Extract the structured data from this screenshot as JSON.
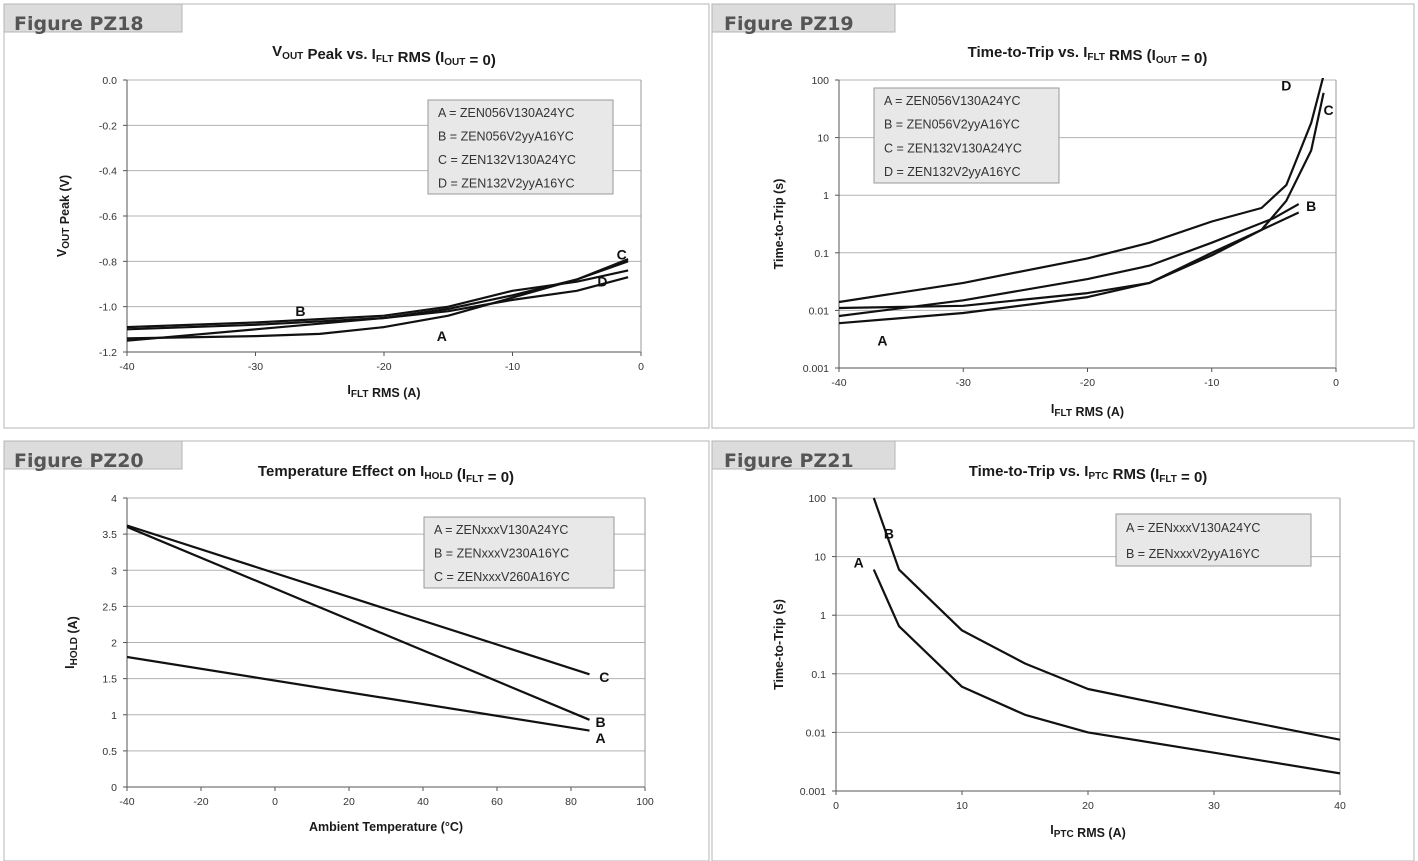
{
  "colors": {
    "frame": "#b5b5b5",
    "tab_bg": "#dcdcdc",
    "grid": "#b3b3b3",
    "line": "#111111",
    "legend_bg": "#e8e8e8"
  },
  "chart_data": [
    {
      "id": "pz18",
      "type": "line",
      "figure_label": "Figure PZ18",
      "title": {
        "a": "V",
        "a_sub": "OUT",
        "b": " Peak vs. I",
        "b_sub": "FLT",
        "c": " RMS (I",
        "c_sub": "OUT",
        "d": " = 0)"
      },
      "xlabel": {
        "a": "I",
        "a_sub": "FLT",
        "b": " RMS (A)"
      },
      "ylabel": {
        "a": "V",
        "a_sub": "OUT",
        "b": " Peak (V)"
      },
      "xscale": "linear",
      "yscale": "linear",
      "xlim": [
        -40,
        0
      ],
      "ylim": [
        -1.2,
        0
      ],
      "xticks": [
        -40,
        -30,
        -20,
        -10,
        0
      ],
      "xtick_labels": [
        "-40",
        "-30",
        "-20",
        "-10",
        "0"
      ],
      "yticks": [
        0,
        -0.2,
        -0.4,
        -0.6,
        -0.8,
        -1.0,
        -1.2
      ],
      "ytick_labels": [
        "0.0",
        "-0.2",
        "-0.4",
        "-0.6",
        "-0.8",
        "-1.0",
        "-1.2"
      ],
      "grid": "horizontal",
      "legend_position": "top-right",
      "legend": [
        "A = ZEN056V130A24YC",
        "B = ZEN056V2yyA16YC",
        "C = ZEN132V130A24YC",
        "D = ZEN132V2yyA16YC"
      ],
      "series": [
        {
          "label": "A",
          "points": [
            [
              -40,
              -1.14
            ],
            [
              -30,
              -1.13
            ],
            [
              -25,
              -1.12
            ],
            [
              -20,
              -1.09
            ],
            [
              -15,
              -1.04
            ],
            [
              -10,
              -0.96
            ],
            [
              -5,
              -0.88
            ],
            [
              -1,
              -0.8
            ]
          ],
          "label_at": [
            -15.5,
            -1.13
          ]
        },
        {
          "label": "B",
          "points": [
            [
              -40,
              -1.1
            ],
            [
              -30,
              -1.08
            ],
            [
              -20,
              -1.05
            ],
            [
              -15,
              -1.02
            ],
            [
              -10,
              -0.97
            ],
            [
              -5,
              -0.93
            ],
            [
              -1,
              -0.87
            ]
          ],
          "label_at": [
            -26.5,
            -1.02
          ]
        },
        {
          "label": "C",
          "points": [
            [
              -40,
              -1.15
            ],
            [
              -30,
              -1.1
            ],
            [
              -20,
              -1.05
            ],
            [
              -15,
              -1.01
            ],
            [
              -10,
              -0.95
            ],
            [
              -5,
              -0.88
            ],
            [
              -1,
              -0.79
            ]
          ],
          "label_at": [
            -1.5,
            -0.77
          ]
        },
        {
          "label": "D",
          "points": [
            [
              -40,
              -1.09
            ],
            [
              -30,
              -1.07
            ],
            [
              -20,
              -1.04
            ],
            [
              -15,
              -1.0
            ],
            [
              -10,
              -0.93
            ],
            [
              -5,
              -0.89
            ],
            [
              -1,
              -0.84
            ]
          ],
          "label_at": [
            -3,
            -0.89
          ]
        }
      ]
    },
    {
      "id": "pz19",
      "type": "line",
      "figure_label": "Figure PZ19",
      "title": {
        "a": "Time-to-Trip vs. I",
        "a_sub": "FLT",
        "b": " RMS (I",
        "b_sub": "OUT",
        "c": " = 0)"
      },
      "xlabel": {
        "a": "I",
        "a_sub": "FLT",
        "b": " RMS (A)"
      },
      "ylabel": {
        "a": "Time-to-Trip (s)"
      },
      "xscale": "linear",
      "yscale": "log",
      "xlim": [
        -40,
        0
      ],
      "ylim": [
        0.001,
        100
      ],
      "xticks": [
        -40,
        -30,
        -20,
        -10,
        0
      ],
      "xtick_labels": [
        "-40",
        "-30",
        "-20",
        "-10",
        "0"
      ],
      "yticks": [
        100,
        10,
        1,
        0.1,
        0.01,
        0.001
      ],
      "ytick_labels": [
        "100",
        "10",
        "1",
        "0.1",
        "0.01",
        "0.001"
      ],
      "grid": "horizontal",
      "legend_position": "top-left",
      "legend": [
        "A = ZEN056V130A24YC",
        "B = ZEN056V2yyA16YC",
        "C = ZEN132V130A24YC",
        "D = ZEN132V2yyA16YC"
      ],
      "series": [
        {
          "label": "A",
          "points": [
            [
              -40,
              0.006
            ],
            [
              -30,
              0.009
            ],
            [
              -20,
              0.017
            ],
            [
              -15,
              0.03
            ],
            [
              -10,
              0.09
            ],
            [
              -6,
              0.25
            ],
            [
              -3,
              0.5
            ]
          ],
          "label_at": [
            -36.5,
            0.003
          ]
        },
        {
          "label": "B",
          "points": [
            [
              -40,
              0.008
            ],
            [
              -30,
              0.015
            ],
            [
              -20,
              0.035
            ],
            [
              -15,
              0.06
            ],
            [
              -10,
              0.15
            ],
            [
              -5,
              0.4
            ],
            [
              -3,
              0.7
            ]
          ],
          "label_at": [
            -2,
            0.65
          ]
        },
        {
          "label": "C",
          "points": [
            [
              -40,
              0.011
            ],
            [
              -30,
              0.012
            ],
            [
              -20,
              0.02
            ],
            [
              -15,
              0.03
            ],
            [
              -10,
              0.1
            ],
            [
              -6,
              0.25
            ],
            [
              -4,
              0.8
            ],
            [
              -2,
              6
            ],
            [
              -1,
              60
            ]
          ],
          "label_at": [
            -0.6,
            30
          ]
        },
        {
          "label": "D",
          "points": [
            [
              -40,
              0.014
            ],
            [
              -30,
              0.03
            ],
            [
              -20,
              0.08
            ],
            [
              -15,
              0.15
            ],
            [
              -10,
              0.35
            ],
            [
              -6,
              0.6
            ],
            [
              -4,
              1.5
            ],
            [
              -2,
              18
            ],
            [
              -1,
              120
            ]
          ],
          "label_at": [
            -4,
            80
          ]
        }
      ]
    },
    {
      "id": "pz20",
      "type": "line",
      "figure_label": "Figure PZ20",
      "title": {
        "a": "Temperature Effect on I",
        "a_sub": "HOLD",
        "b": " (I",
        "b_sub": "FLT",
        "c": " = 0)"
      },
      "xlabel": {
        "a": "Ambient Temperature (°C)"
      },
      "ylabel": {
        "a": "I",
        "a_sub": "HOLD",
        "b": " (A)"
      },
      "xscale": "linear",
      "yscale": "linear",
      "xlim": [
        -40,
        100
      ],
      "ylim": [
        0,
        4
      ],
      "xticks": [
        -40,
        -20,
        0,
        20,
        40,
        60,
        80,
        100
      ],
      "xtick_labels": [
        "-40",
        "-20",
        "0",
        "20",
        "40",
        "60",
        "80",
        "100"
      ],
      "yticks": [
        4,
        3.5,
        3,
        2.5,
        2,
        1.5,
        1,
        0.5,
        0
      ],
      "ytick_labels": [
        "4",
        "3.5",
        "3",
        "2.5",
        "2",
        "1.5",
        "1",
        "0.5",
        "0"
      ],
      "grid": "horizontal",
      "legend_position": "top-right",
      "legend": [
        "A = ZENxxxV130A24YC",
        "B = ZENxxxV230A16YC",
        "C = ZENxxxV260A16YC"
      ],
      "series": [
        {
          "label": "A",
          "points": [
            [
              -40,
              1.8
            ],
            [
              85,
              0.78
            ]
          ],
          "label_at": [
            88,
            0.68
          ]
        },
        {
          "label": "B",
          "points": [
            [
              -40,
              3.6
            ],
            [
              85,
              0.93
            ]
          ],
          "label_at": [
            88,
            0.9
          ]
        },
        {
          "label": "C",
          "points": [
            [
              -40,
              3.62
            ],
            [
              85,
              1.56
            ]
          ],
          "label_at": [
            89,
            1.52
          ]
        }
      ]
    },
    {
      "id": "pz21",
      "type": "line",
      "figure_label": "Figure PZ21",
      "title": {
        "a": "Time-to-Trip vs. I",
        "a_sub": "PTC",
        "b": " RMS (I",
        "b_sub": "FLT",
        "c": " = 0)"
      },
      "xlabel": {
        "a": "I",
        "a_sub": "PTC",
        "b": " RMS (A)"
      },
      "ylabel": {
        "a": "Time-to-Trip (s)"
      },
      "xscale": "linear",
      "yscale": "log",
      "xlim": [
        0,
        40
      ],
      "ylim": [
        0.001,
        100
      ],
      "xticks": [
        0,
        10,
        20,
        30,
        40
      ],
      "xtick_labels": [
        "0",
        "10",
        "20",
        "30",
        "40"
      ],
      "yticks": [
        100,
        10,
        1,
        0.1,
        0.01,
        0.001
      ],
      "ytick_labels": [
        "100",
        "10",
        "1",
        "0.1",
        "0.01",
        "0.001"
      ],
      "grid": "horizontal",
      "legend_position": "top-right",
      "legend": [
        "A = ZENxxxV130A24YC",
        "B = ZENxxxV2yyA16YC"
      ],
      "series": [
        {
          "label": "A",
          "points": [
            [
              3,
              6
            ],
            [
              5,
              0.65
            ],
            [
              10,
              0.06
            ],
            [
              15,
              0.02
            ],
            [
              20,
              0.01
            ],
            [
              30,
              0.0045
            ],
            [
              40,
              0.002
            ]
          ],
          "label_at": [
            1.8,
            8
          ]
        },
        {
          "label": "B",
          "points": [
            [
              3,
              100
            ],
            [
              5,
              6
            ],
            [
              10,
              0.55
            ],
            [
              15,
              0.15
            ],
            [
              20,
              0.055
            ],
            [
              30,
              0.02
            ],
            [
              40,
              0.0075
            ]
          ],
          "label_at": [
            4.2,
            25
          ]
        }
      ]
    }
  ]
}
